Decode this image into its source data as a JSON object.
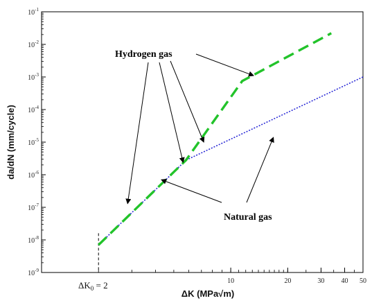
{
  "chart_data": {
    "type": "line",
    "xscale": "log",
    "yscale": "log",
    "xlim": [
      1,
      50
    ],
    "ylim": [
      1e-09,
      0.1
    ],
    "xlabel": "ΔK (MPa√m)",
    "ylabel": "da/dN (mm/cycle)",
    "x_tick_labels": [
      {
        "value": 10,
        "label": "10"
      },
      {
        "value": 20,
        "label": "20"
      },
      {
        "value": 30,
        "label": "30"
      },
      {
        "value": 40,
        "label": "40"
      },
      {
        "value": 50,
        "label": "50"
      }
    ],
    "y_tick_exponents": [
      "-9",
      "-8",
      "-7",
      "-6",
      "-5",
      "-4",
      "-3",
      "-2",
      "-1"
    ],
    "threshold": {
      "value": 2,
      "label": "ΔK0 = 2",
      "label_main": "ΔK",
      "label_sub": "0",
      "label_rest": " = 2"
    },
    "series": [
      {
        "name": "Hydrogen gas",
        "color": "#22c32a",
        "style": "long-dash",
        "x": [
          2,
          5.8,
          11.5,
          34
        ],
        "y": [
          7e-09,
          2.8e-06,
          0.00075,
          0.022
        ]
      },
      {
        "name": "Natural gas",
        "color": "#2b2bd6",
        "style": "dotted",
        "x": [
          2,
          5.8,
          50
        ],
        "y": [
          7e-09,
          2.8e-06,
          0.001
        ]
      }
    ],
    "grid": false,
    "legend": "none"
  }
}
